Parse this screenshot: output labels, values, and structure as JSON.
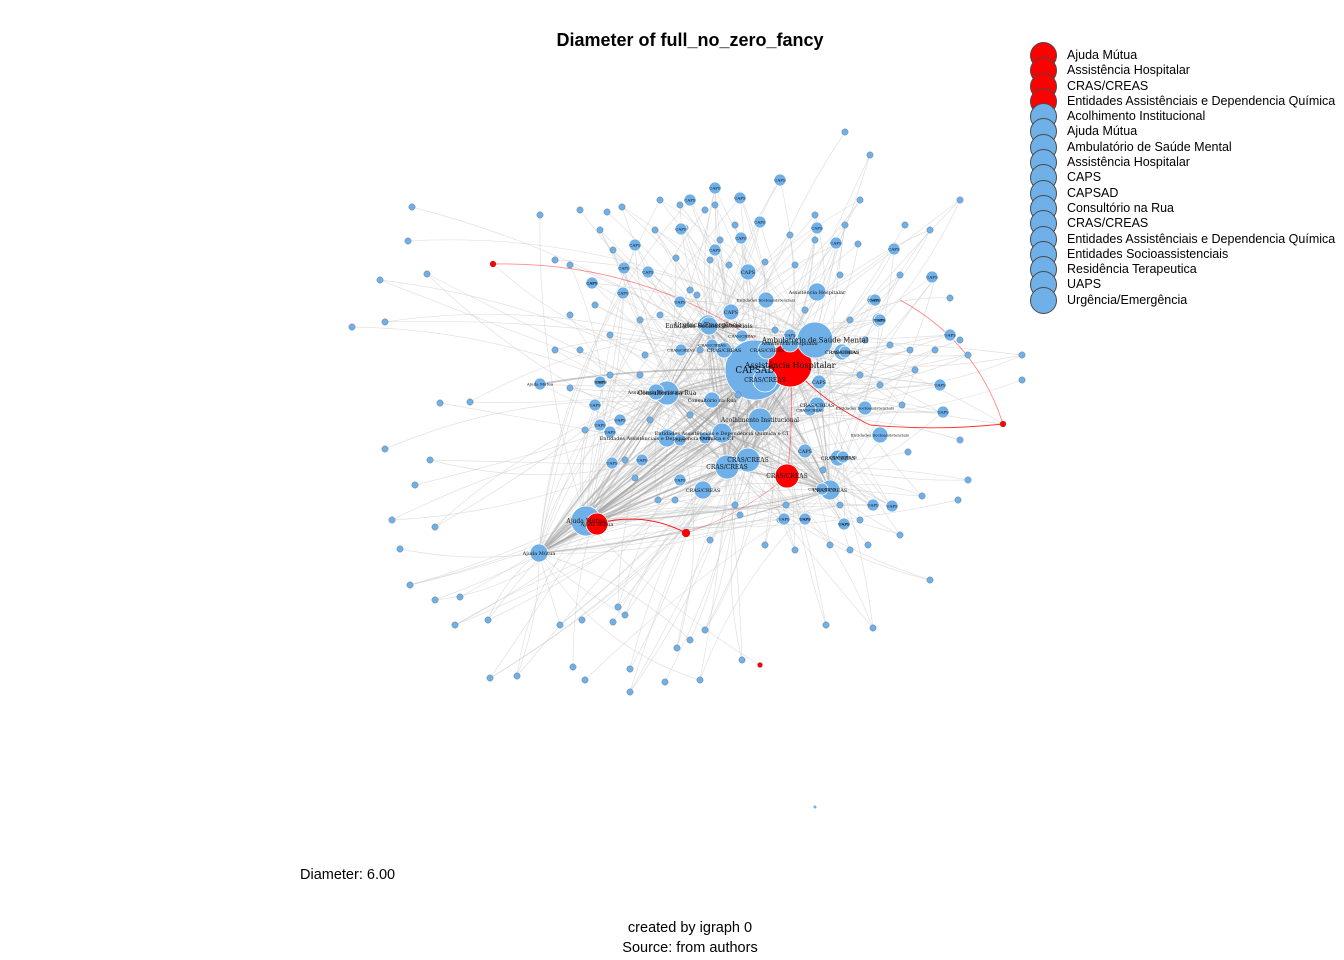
{
  "title": "Diameter of full_no_zero_fancy",
  "diameter_label": "Diameter: 6.00",
  "caption_line1": "created by igraph 0",
  "caption_line2": "Source: from authors",
  "colors": {
    "highlight": "#ff0000",
    "node": "#6fb0e8",
    "edge": "#c8c8c8",
    "node_border": "#4a4a4a"
  },
  "legend": [
    {
      "label": "Ajuda Mútua",
      "color": "#ff0000"
    },
    {
      "label": "Assistência Hospitalar",
      "color": "#ff0000"
    },
    {
      "label": "CRAS/CREAS",
      "color": "#ff0000"
    },
    {
      "label": "Entidades Assistênciais e Dependencia Química",
      "color": "#ff0000"
    },
    {
      "label": "Acolhimento Institucional",
      "color": "#6fb0e8"
    },
    {
      "label": "Ajuda Mútua",
      "color": "#6fb0e8"
    },
    {
      "label": "Ambulatório de Saúde Mental",
      "color": "#6fb0e8"
    },
    {
      "label": "Assistência Hospitalar",
      "color": "#6fb0e8"
    },
    {
      "label": "CAPS",
      "color": "#6fb0e8"
    },
    {
      "label": "CAPSAD",
      "color": "#6fb0e8"
    },
    {
      "label": "Consultório na Rua",
      "color": "#6fb0e8"
    },
    {
      "label": "CRAS/CREAS",
      "color": "#6fb0e8"
    },
    {
      "label": "Entidades Assistênciais e Dependencia Química",
      "color": "#6fb0e8"
    },
    {
      "label": "Entidades Socioassistenciais",
      "color": "#6fb0e8"
    },
    {
      "label": "Residência Terapeutica",
      "color": "#6fb0e8"
    },
    {
      "label": "UAPS",
      "color": "#6fb0e8"
    },
    {
      "label": "Urgência/Emergência",
      "color": "#6fb0e8"
    }
  ],
  "node_labels": [
    "CAPSAD",
    "Assistência Hospitalar",
    "Ambulatório de Saúde Mental",
    "CRAS/CREAS",
    "CAPS",
    "UAPS",
    "Urgência/Emergência",
    "Entidades Socioassistenciais",
    "Consultório na Rua",
    "Acolhimento Institucional",
    "Ajuda Mútua",
    "Entidades Assistênciais e Dependencia Química e CT",
    "Residência Terapeutica"
  ]
}
